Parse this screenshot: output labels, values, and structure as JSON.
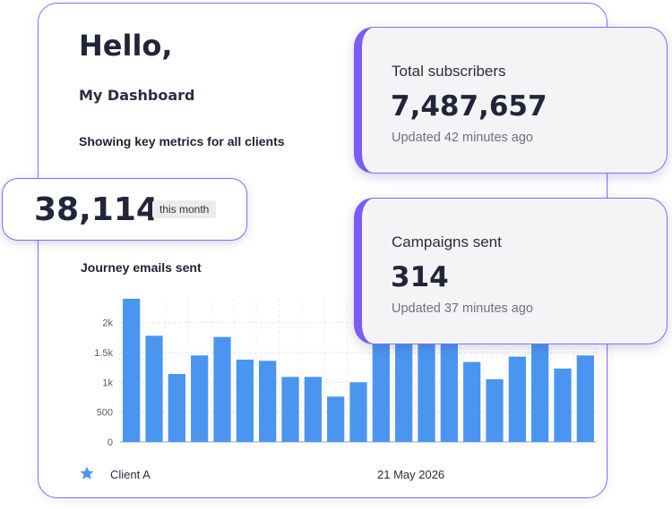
{
  "greeting": "Hello,",
  "subtitle": "My Dashboard",
  "caption": "Showing key metrics for all clients",
  "monthly": {
    "value": "38,114",
    "badge": "this month"
  },
  "stats": [
    {
      "label": "Total subscribers",
      "value": "7,487,657",
      "updated": "Updated 42 minutes ago"
    },
    {
      "label": "Campaigns sent",
      "value": "314",
      "updated": "Updated 37 minutes ago"
    }
  ],
  "footer": {
    "client": "Client A",
    "date": "21 May 2026",
    "icon": "star-icon"
  },
  "colors": {
    "accent": "#7c5cf6",
    "bar": "#4a95f0"
  },
  "chart_data": {
    "type": "bar",
    "title": "Journey emails sent",
    "xlabel": "",
    "ylabel": "",
    "ylim": [
      0,
      2400
    ],
    "yticks": [
      {
        "value": 0,
        "label": "0"
      },
      {
        "value": 500,
        "label": "500"
      },
      {
        "value": 1000,
        "label": "1k"
      },
      {
        "value": 1500,
        "label": "1.5k"
      },
      {
        "value": 2000,
        "label": "2k"
      }
    ],
    "grid": true,
    "values": [
      2400,
      1780,
      1140,
      1450,
      1760,
      1380,
      1360,
      1090,
      1090,
      760,
      1000,
      1700,
      1700,
      1700,
      1700,
      1340,
      1050,
      1430,
      1700,
      1230,
      1450
    ]
  }
}
